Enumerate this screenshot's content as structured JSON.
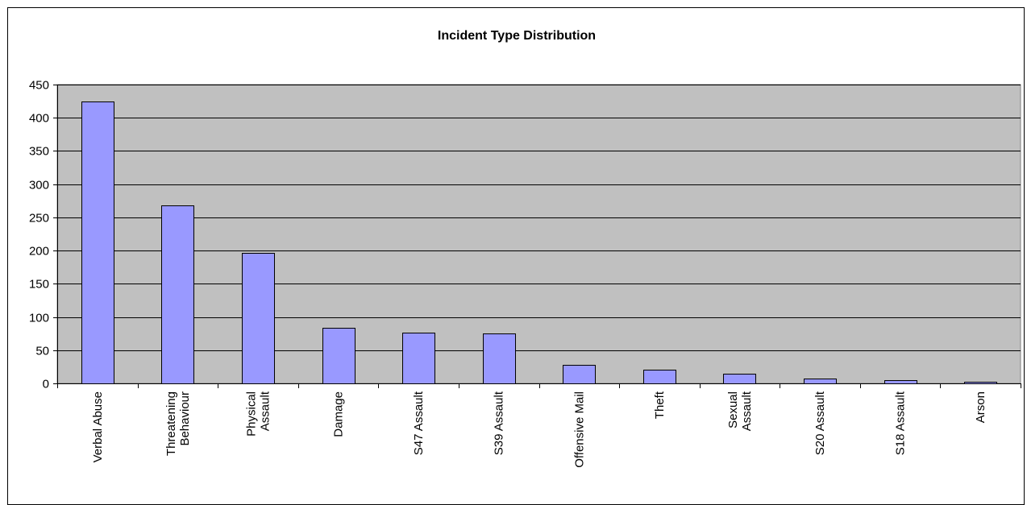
{
  "chart_data": {
    "type": "bar",
    "title": "Incident Type Distribution",
    "xlabel": "",
    "ylabel": "",
    "ylim": [
      0,
      450
    ],
    "yticks": [
      0,
      50,
      100,
      150,
      200,
      250,
      300,
      350,
      400,
      450
    ],
    "grid": true,
    "legend": "none",
    "categories": [
      [
        "Verbal Abuse"
      ],
      [
        "Threatening",
        "Behaviour"
      ],
      [
        "Physical",
        "Assault"
      ],
      [
        "Damage"
      ],
      [
        "S47 Assault"
      ],
      [
        "S39 Assault"
      ],
      [
        "Offensive Mail"
      ],
      [
        "Theft"
      ],
      [
        "Sexual",
        "Assault"
      ],
      [
        "S20 Assault"
      ],
      [
        "S18 Assault"
      ],
      [
        "Arson"
      ]
    ],
    "values": [
      424,
      268,
      196,
      84,
      77,
      75,
      28,
      21,
      14,
      7,
      5,
      2
    ]
  },
  "colors": {
    "plot_background": "#c0c0c0",
    "bar_fill": "#9999ff",
    "bar_stroke": "#000000",
    "gridline": "#000000"
  }
}
